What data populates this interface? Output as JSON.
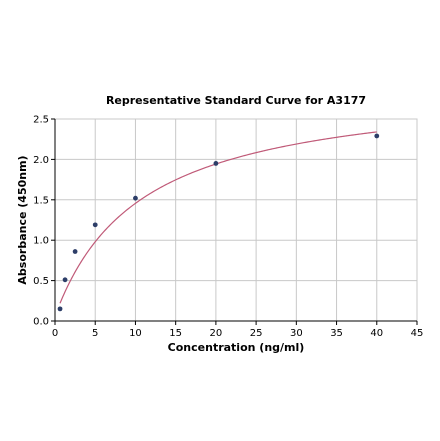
{
  "chart_data": {
    "type": "scatter",
    "title": "Representative Standard Curve for A3177",
    "xlabel": "Concentration (ng/ml)",
    "ylabel": "Absorbance (450nm)",
    "xlim": [
      0,
      45
    ],
    "ylim": [
      0,
      2.5
    ],
    "x_ticks": [
      "0",
      "5",
      "10",
      "15",
      "20",
      "25",
      "30",
      "35",
      "40",
      "45"
    ],
    "y_ticks": [
      "0.0",
      "0.5",
      "1.0",
      "1.5",
      "2.0",
      "2.5"
    ],
    "grid": true,
    "points": [
      {
        "x": 0.625,
        "y": 0.15
      },
      {
        "x": 1.25,
        "y": 0.51
      },
      {
        "x": 2.5,
        "y": 0.86
      },
      {
        "x": 5,
        "y": 1.19
      },
      {
        "x": 10,
        "y": 1.52
      },
      {
        "x": 20,
        "y": 1.95
      },
      {
        "x": 40,
        "y": 2.29
      }
    ],
    "fit_curve": {
      "type": "4PL",
      "a": 0.06,
      "b": 1.0,
      "c": 10.7,
      "d": 2.95
    },
    "colors": {
      "points": "#2d3e68",
      "curve": "#c05a78",
      "grid": "#c8c8c8",
      "axis": "#000000"
    }
  }
}
